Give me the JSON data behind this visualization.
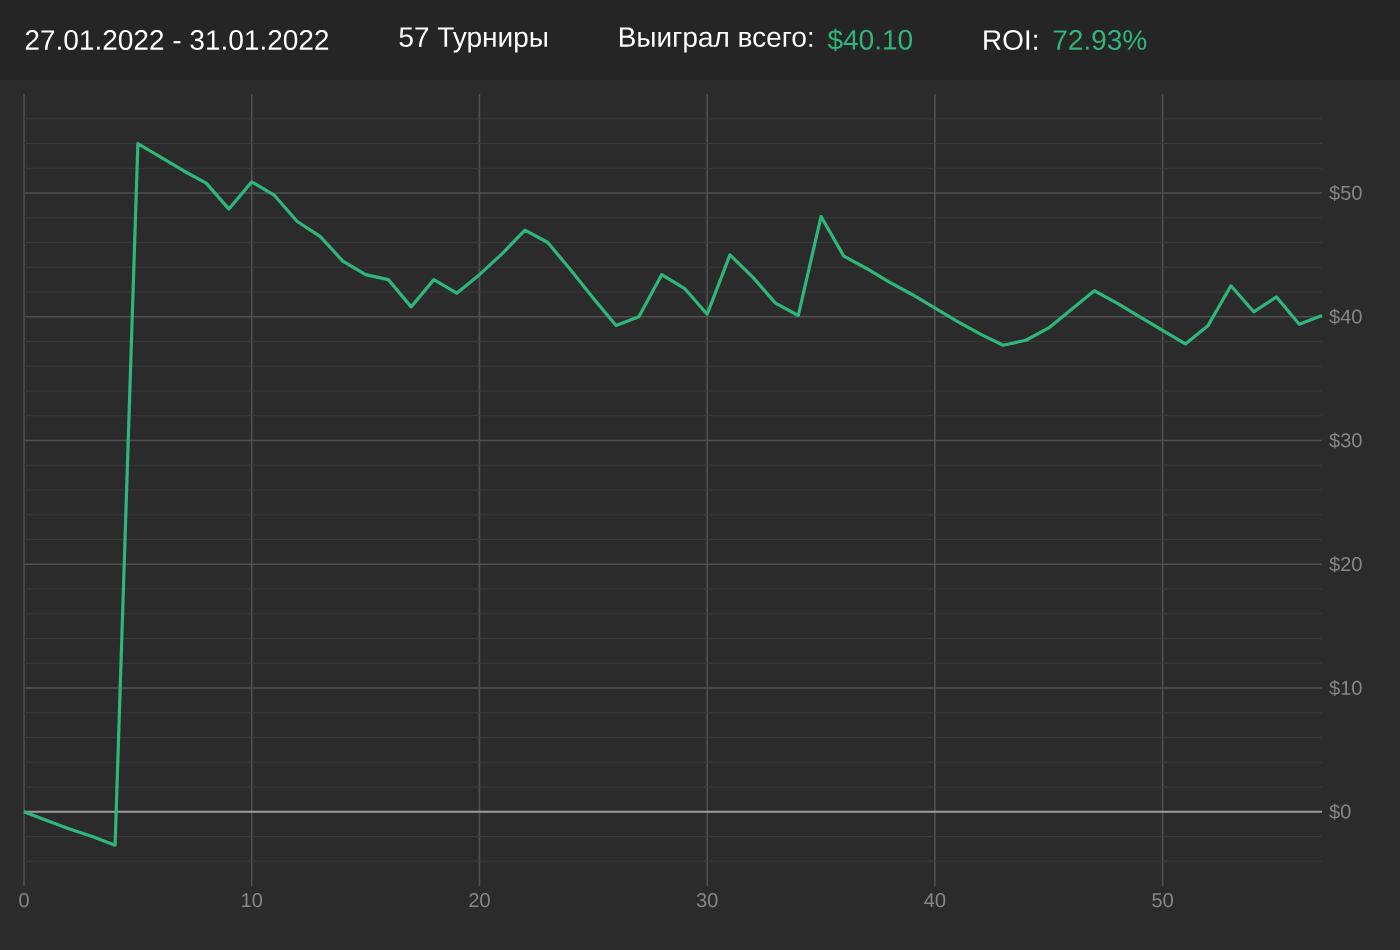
{
  "chart_data": {
    "type": "line",
    "title": "27.01.2022 - 31.01.2022",
    "annotations": [
      "57 Турниры",
      "Выиграл всего:",
      "$40.10",
      "ROI:",
      "72.93%"
    ],
    "x": [
      0,
      1,
      2,
      3,
      4,
      5,
      6,
      7,
      8,
      9,
      10,
      11,
      12,
      13,
      14,
      15,
      16,
      17,
      18,
      19,
      20,
      21,
      22,
      23,
      24,
      25,
      26,
      27,
      28,
      29,
      30,
      31,
      32,
      33,
      34,
      35,
      36,
      37,
      38,
      39,
      40,
      41,
      42,
      43,
      44,
      45,
      46,
      47,
      48,
      49,
      50,
      51,
      52,
      53,
      54,
      55,
      56,
      57
    ],
    "series": [
      {
        "color": "#2fb67c",
        "values": [
          0,
          -0.7,
          -1.4,
          -2.0,
          -2.7,
          54.0,
          52.9,
          51.8,
          50.8,
          48.7,
          50.9,
          49.8,
          47.7,
          46.5,
          44.5,
          43.4,
          43.0,
          40.8,
          43.0,
          41.9,
          43.4,
          45.1,
          47.0,
          46.0,
          43.8,
          41.5,
          39.3,
          40.0,
          43.4,
          42.3,
          40.2,
          45.0,
          43.2,
          41.1,
          40.1,
          48.1,
          44.9,
          43.9,
          42.8,
          41.8,
          40.7,
          39.6,
          38.6,
          37.7,
          38.1,
          39.1,
          40.6,
          42.1,
          41.1,
          40.0,
          38.9,
          37.8,
          39.3,
          42.5,
          40.4,
          41.6,
          39.4,
          40.1
        ]
      }
    ],
    "xlim": [
      0,
      57
    ],
    "ylim": [
      -6,
      58
    ],
    "xticks": [
      0,
      10,
      20,
      30,
      40,
      50
    ],
    "yticks": [
      {
        "value": -4,
        "label": null
      },
      {
        "value": -2,
        "label": null
      },
      {
        "value": 0,
        "label": "$0"
      },
      {
        "value": 2,
        "label": null
      },
      {
        "value": 4,
        "label": null
      },
      {
        "value": 6,
        "label": null
      },
      {
        "value": 8,
        "label": null
      },
      {
        "value": 10,
        "label": "$10"
      },
      {
        "value": 12,
        "label": null
      },
      {
        "value": 14,
        "label": null
      },
      {
        "value": 16,
        "label": null
      },
      {
        "value": 18,
        "label": null
      },
      {
        "value": 20,
        "label": "$20"
      },
      {
        "value": 22,
        "label": null
      },
      {
        "value": 24,
        "label": null
      },
      {
        "value": 26,
        "label": null
      },
      {
        "value": 28,
        "label": null
      },
      {
        "value": 30,
        "label": "$30"
      },
      {
        "value": 32,
        "label": null
      },
      {
        "value": 34,
        "label": null
      },
      {
        "value": 36,
        "label": null
      },
      {
        "value": 38,
        "label": null
      },
      {
        "value": 40,
        "label": "$40"
      },
      {
        "value": 42,
        "label": null
      },
      {
        "value": 44,
        "label": null
      },
      {
        "value": 46,
        "label": null
      },
      {
        "value": 48,
        "label": null
      },
      {
        "value": 50,
        "label": "$50"
      },
      {
        "value": 52,
        "label": null
      },
      {
        "value": 54,
        "label": null
      },
      {
        "value": 56,
        "label": null
      }
    ],
    "grid": true,
    "ref_lines": [
      {
        "axis": "y",
        "value": 0,
        "color": "#9a9a9a"
      }
    ]
  }
}
